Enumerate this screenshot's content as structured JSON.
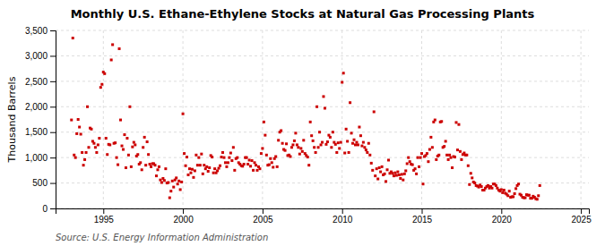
{
  "chart_data": {
    "type": "scatter",
    "title": "Monthly U.S. Ethane-Ethylene Stocks at Natural Gas Processing Plants",
    "y_label": "Thousand Barrels",
    "source": "Source: U.S. Energy Information Administration",
    "color": "#CC0000",
    "marker": "square",
    "grid": true,
    "xlim": [
      1992.0,
      2025.5
    ],
    "ylim": [
      0,
      3500
    ],
    "xticks": [
      1995,
      2000,
      2005,
      2010,
      2015,
      2020,
      2025
    ],
    "yticks": [
      0,
      500,
      {
        "value": 1000,
        "label": "1,000"
      },
      {
        "value": 1500,
        "label": "1,500"
      },
      {
        "value": 2000,
        "label": "2,000"
      },
      {
        "value": 2500,
        "label": "2,500"
      },
      {
        "value": 3000,
        "label": "3,000"
      },
      {
        "value": 3500,
        "label": "3,500"
      }
    ],
    "x": [
      1993.0,
      1993.083,
      1993.167,
      1993.25,
      1993.333,
      1993.417,
      1993.5,
      1993.583,
      1993.667,
      1993.75,
      1993.833,
      1993.917,
      1994.0,
      1994.083,
      1994.167,
      1994.25,
      1994.333,
      1994.417,
      1994.5,
      1994.583,
      1994.667,
      1994.75,
      1994.833,
      1994.917,
      1995.0,
      1995.083,
      1995.167,
      1995.25,
      1995.333,
      1995.417,
      1995.5,
      1995.583,
      1995.667,
      1995.75,
      1995.833,
      1995.917,
      1996.0,
      1996.083,
      1996.167,
      1996.25,
      1996.333,
      1996.417,
      1996.5,
      1996.583,
      1996.667,
      1996.75,
      1996.833,
      1996.917,
      1997.0,
      1997.083,
      1997.167,
      1997.25,
      1997.333,
      1997.417,
      1997.5,
      1997.583,
      1997.667,
      1997.75,
      1997.833,
      1997.917,
      1998.0,
      1998.083,
      1998.167,
      1998.25,
      1998.333,
      1998.417,
      1998.5,
      1998.583,
      1998.667,
      1998.75,
      1998.833,
      1998.917,
      1999.0,
      1999.083,
      1999.167,
      1999.25,
      1999.333,
      1999.417,
      1999.5,
      1999.583,
      1999.667,
      1999.75,
      1999.833,
      1999.917,
      2000.0,
      2000.083,
      2000.167,
      2000.25,
      2000.333,
      2000.417,
      2000.5,
      2000.583,
      2000.667,
      2000.75,
      2000.833,
      2000.917,
      2001.0,
      2001.083,
      2001.167,
      2001.25,
      2001.333,
      2001.417,
      2001.5,
      2001.583,
      2001.667,
      2001.75,
      2001.833,
      2001.917,
      2002.0,
      2002.083,
      2002.167,
      2002.25,
      2002.333,
      2002.417,
      2002.5,
      2002.583,
      2002.667,
      2002.75,
      2002.833,
      2002.917,
      2003.0,
      2003.083,
      2003.167,
      2003.25,
      2003.333,
      2003.417,
      2003.5,
      2003.583,
      2003.667,
      2003.75,
      2003.833,
      2003.917,
      2004.0,
      2004.083,
      2004.167,
      2004.25,
      2004.333,
      2004.417,
      2004.5,
      2004.583,
      2004.667,
      2004.75,
      2004.833,
      2004.917,
      2005.0,
      2005.083,
      2005.167,
      2005.25,
      2005.333,
      2005.417,
      2005.5,
      2005.583,
      2005.667,
      2005.75,
      2005.833,
      2005.917,
      2006.0,
      2006.083,
      2006.167,
      2006.25,
      2006.333,
      2006.417,
      2006.5,
      2006.583,
      2006.667,
      2006.75,
      2006.833,
      2006.917,
      2007.0,
      2007.083,
      2007.167,
      2007.25,
      2007.333,
      2007.417,
      2007.5,
      2007.583,
      2007.667,
      2007.75,
      2007.833,
      2007.917,
      2008.0,
      2008.083,
      2008.167,
      2008.25,
      2008.333,
      2008.417,
      2008.5,
      2008.583,
      2008.667,
      2008.75,
      2008.833,
      2008.917,
      2009.0,
      2009.083,
      2009.167,
      2009.25,
      2009.333,
      2009.417,
      2009.5,
      2009.583,
      2009.667,
      2009.75,
      2009.833,
      2009.917,
      2010.0,
      2010.083,
      2010.167,
      2010.25,
      2010.333,
      2010.417,
      2010.5,
      2010.583,
      2010.667,
      2010.75,
      2010.833,
      2010.917,
      2011.0,
      2011.083,
      2011.167,
      2011.25,
      2011.333,
      2011.417,
      2011.5,
      2011.583,
      2011.667,
      2011.75,
      2011.833,
      2011.917,
      2012.0,
      2012.083,
      2012.167,
      2012.25,
      2012.333,
      2012.417,
      2012.5,
      2012.583,
      2012.667,
      2012.75,
      2012.833,
      2012.917,
      2013.0,
      2013.083,
      2013.167,
      2013.25,
      2013.333,
      2013.417,
      2013.5,
      2013.583,
      2013.667,
      2013.75,
      2013.833,
      2013.917,
      2014.0,
      2014.083,
      2014.167,
      2014.25,
      2014.333,
      2014.417,
      2014.5,
      2014.583,
      2014.667,
      2014.75,
      2014.833,
      2014.917,
      2015.0,
      2015.083,
      2015.167,
      2015.25,
      2015.333,
      2015.417,
      2015.5,
      2015.583,
      2015.667,
      2015.75,
      2015.833,
      2015.917,
      2016.0,
      2016.083,
      2016.167,
      2016.25,
      2016.333,
      2016.417,
      2016.5,
      2016.583,
      2016.667,
      2016.75,
      2016.833,
      2016.917,
      2017.0,
      2017.083,
      2017.167,
      2017.25,
      2017.333,
      2017.417,
      2017.5,
      2017.583,
      2017.667,
      2017.75,
      2017.833,
      2017.917,
      2018.0,
      2018.083,
      2018.167,
      2018.25,
      2018.333,
      2018.417,
      2018.5,
      2018.583,
      2018.667,
      2018.75,
      2018.833,
      2018.917,
      2019.0,
      2019.083,
      2019.167,
      2019.25,
      2019.333,
      2019.417,
      2019.5,
      2019.583,
      2019.667,
      2019.75,
      2019.833,
      2019.917,
      2020.0,
      2020.083,
      2020.167,
      2020.25,
      2020.333,
      2020.417,
      2020.5,
      2020.583,
      2020.667,
      2020.75,
      2020.833,
      2020.917,
      2021.0,
      2021.083,
      2021.167,
      2021.25,
      2021.333,
      2021.417,
      2021.5,
      2021.583,
      2021.667,
      2021.75,
      2021.833,
      2021.917,
      2022.0,
      2022.083,
      2022.167,
      2022.25,
      2022.333,
      2022.417
    ],
    "values": [
      1740,
      3350,
      1050,
      1000,
      1470,
      1750,
      1600,
      1460,
      1100,
      850,
      960,
      1100,
      2000,
      1200,
      1580,
      1560,
      1320,
      1280,
      1200,
      1100,
      1250,
      1380,
      2380,
      2440,
      2680,
      2650,
      1380,
      1060,
      1260,
      1250,
      2920,
      3220,
      1280,
      1290,
      1000,
      860,
      3140,
      1740,
      1230,
      1160,
      1450,
      800,
      1380,
      1050,
      2000,
      820,
      1210,
      1300,
      1250,
      1030,
      1060,
      870,
      900,
      760,
      1200,
      1400,
      850,
      1310,
      1060,
      870,
      820,
      880,
      880,
      850,
      640,
      760,
      820,
      560,
      510,
      590,
      550,
      780,
      500,
      510,
      210,
      340,
      540,
      420,
      560,
      600,
      480,
      540,
      370,
      520,
      1860,
      1080,
      840,
      1010,
      660,
      780,
      700,
      770,
      610,
      740,
      1050,
      850,
      1000,
      850,
      1070,
      680,
      850,
      780,
      820,
      730,
      800,
      1040,
      1010,
      700,
      780,
      700,
      740,
      790,
      840,
      1010,
      1100,
      1000,
      900,
      820,
      900,
      1000,
      1090,
      940,
      1200,
      750,
      980,
      1000,
      900,
      870,
      840,
      830,
      870,
      1000,
      1000,
      870,
      950,
      830,
      940,
      750,
      900,
      850,
      750,
      820,
      780,
      1080,
      1180,
      1700,
      1440,
      1050,
      850,
      860,
      980,
      900,
      810,
      980,
      1020,
      820,
      1340,
      1500,
      1530,
      1280,
      1160,
      1140,
      1270,
      1040,
      1050,
      1020,
      1200,
      1250,
      1330,
      1480,
      1250,
      1200,
      1070,
      1180,
      1120,
      1340,
      1080,
      1040,
      1010,
      850,
      1700,
      1430,
      1330,
      1200,
      1100,
      2000,
      1200,
      1500,
      1250,
      1300,
      2200,
      1970,
      1260,
      1310,
      1440,
      1400,
      1200,
      1500,
      1300,
      1260,
      1100,
      1290,
      1180,
      1300,
      2480,
      2660,
      1090,
      1560,
      1320,
      1100,
      2080,
      1480,
      1280,
      1350,
      1250,
      1300,
      1250,
      1600,
      1430,
      1230,
      1300,
      1200,
      1150,
      1100,
      1280,
      1050,
      890,
      750,
      1900,
      640,
      780,
      580,
      800,
      720,
      820,
      660,
      680,
      530,
      760,
      950,
      690,
      720,
      690,
      640,
      700,
      650,
      720,
      660,
      590,
      670,
      560,
      680,
      740,
      880,
      1000,
      920,
      870,
      860,
      750,
      780,
      680,
      1000,
      820,
      1000,
      1080,
      480,
      1020,
      1040,
      1080,
      920,
      1160,
      1400,
      1200,
      1700,
      1740,
      960,
      1030,
      1050,
      1700,
      1710,
      1200,
      1220,
      1320,
      1050,
      960,
      1050,
      1000,
      800,
      1020,
      1010,
      1690,
      1150,
      1650,
      1120,
      960,
      1060,
      1090,
      1050,
      1050,
      840,
      470,
      690,
      600,
      520,
      500,
      450,
      440,
      420,
      460,
      430,
      360,
      360,
      400,
      430,
      450,
      400,
      430,
      400,
      480,
      480,
      450,
      400,
      360,
      340,
      370,
      310,
      360,
      300,
      280,
      250,
      340,
      220,
      230,
      230,
      290,
      390,
      450,
      480,
      280,
      260,
      220,
      210,
      210,
      270,
      260,
      260,
      200,
      200,
      240,
      220,
      190,
      180,
      250,
      450
    ]
  }
}
